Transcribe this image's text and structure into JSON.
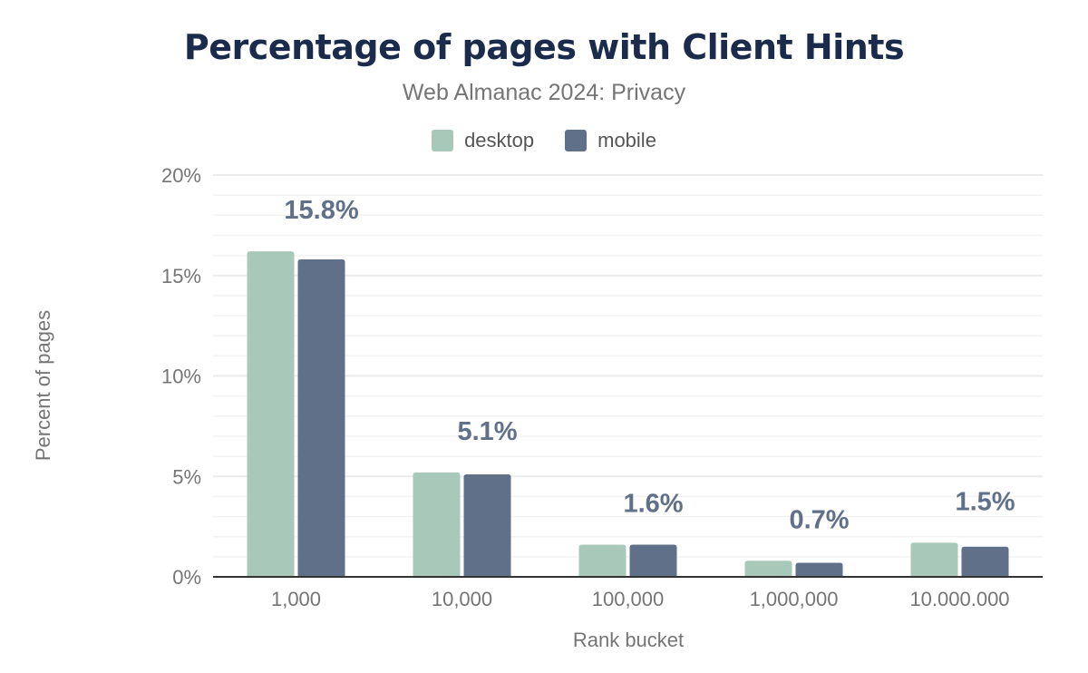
{
  "chart_data": {
    "type": "bar",
    "title": "Percentage of pages with Client Hints",
    "subtitle": "Web Almanac 2024: Privacy",
    "xlabel": "Rank bucket",
    "ylabel": "Percent of pages",
    "categories": [
      "1,000",
      "10,000",
      "100,000",
      "1,000,000",
      "10.000.000"
    ],
    "series": [
      {
        "name": "desktop",
        "color": "#a8c9b9",
        "values": [
          16.2,
          5.2,
          1.6,
          0.8,
          1.7
        ]
      },
      {
        "name": "mobile",
        "color": "#607089",
        "values": [
          15.8,
          5.1,
          1.6,
          0.7,
          1.5
        ]
      }
    ],
    "data_labels": [
      "15.8%",
      "5.1%",
      "1.6%",
      "0.7%",
      "1.5%"
    ],
    "ylim": [
      0,
      20
    ],
    "yticks": [
      "0%",
      "5%",
      "10%",
      "15%",
      "20%"
    ],
    "ytick_values": [
      0,
      5,
      10,
      15,
      20
    ],
    "grid": true,
    "legend": "top-center"
  }
}
